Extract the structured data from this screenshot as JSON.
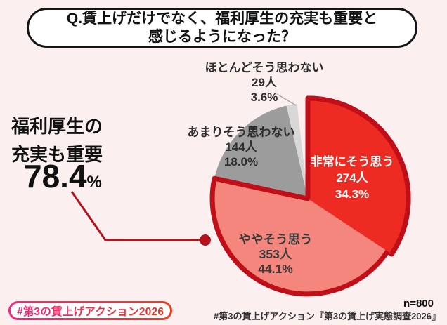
{
  "title": {
    "lines": [
      "Q.賃上げだけでなく、福利厚生の充実も重要と",
      "感じるようになった？"
    ]
  },
  "headline": {
    "lines": [
      "福利厚生の",
      "充実も重要"
    ],
    "value": "78.4",
    "unit": "%"
  },
  "chart_data": {
    "type": "pie",
    "title": "Q.賃上げだけでなく、福利厚生の充実も重要と感じるようになった？",
    "n": 800,
    "start_angle_deg": 0,
    "direction": "clockwise",
    "slices": [
      {
        "label": "非常にそう思う",
        "count": 274,
        "count_label": "274人",
        "pct": 34.3,
        "pct_label": "34.3%",
        "color": "#EE2B22",
        "emphasized": true
      },
      {
        "label": "ややそう思う",
        "count": 353,
        "count_label": "353人",
        "pct": 44.1,
        "pct_label": "44.1%",
        "color": "#F5867D",
        "emphasized": false
      },
      {
        "label": "あまりそう思わない",
        "count": 144,
        "count_label": "144人",
        "pct": 18.0,
        "pct_label": "18.0%",
        "color": "#9C9C9C",
        "emphasized": false
      },
      {
        "label": "ほとんどそう思わない",
        "count": 29,
        "count_label": "29人",
        "pct": 3.6,
        "pct_label": "3.6%",
        "color": "#D8D8D8",
        "emphasized": false
      }
    ],
    "agree_total": {
      "pct": 78.4,
      "label": "福利厚生の充実も重要"
    },
    "outline_color": "#C00F18",
    "callout_color": "#B5121B",
    "leader_line_color": "#A9A9A9",
    "legend_position": "on-slices"
  },
  "badge": {
    "label": "#第3の賃上げアクション2026"
  },
  "footer": {
    "n_label": "n=800",
    "source": "#第3の賃上げアクション『第3の賃上げ実態調査2026』"
  }
}
